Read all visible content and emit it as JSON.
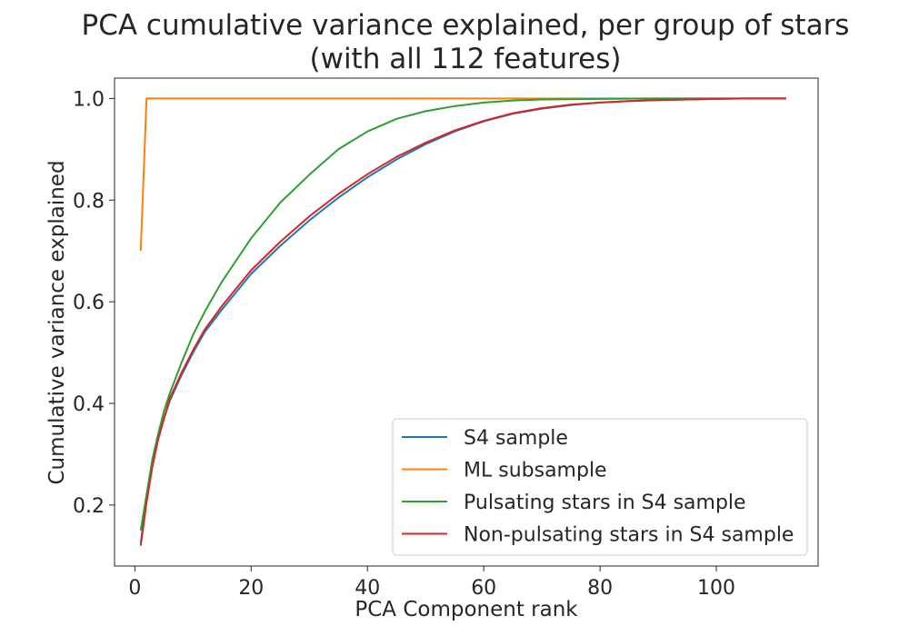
{
  "chart_data": {
    "type": "line",
    "title": [
      "PCA cumulative variance explained, per group of stars",
      "(with all 112 features)"
    ],
    "xlabel": "PCA Component rank",
    "ylabel": "Cumulative variance explained",
    "xlim": [
      -3.5,
      117.5
    ],
    "ylim": [
      0.08,
      1.04
    ],
    "xticks": [
      0,
      20,
      40,
      60,
      80,
      100
    ],
    "yticks": [
      0.2,
      0.4,
      0.6,
      0.8,
      1.0
    ],
    "xtick_labels": [
      "0",
      "20",
      "40",
      "60",
      "80",
      "100"
    ],
    "ytick_labels": [
      "0.2",
      "0.4",
      "0.6",
      "0.8",
      "1.0"
    ],
    "grid": false,
    "legend_position": "lower right",
    "series": [
      {
        "name": "S4 sample",
        "color": "#1f77b4",
        "x": [
          1,
          2,
          3,
          4,
          5,
          6,
          8,
          10,
          12,
          15,
          20,
          25,
          30,
          35,
          40,
          45,
          50,
          55,
          60,
          65,
          70,
          75,
          80,
          85,
          90,
          95,
          100,
          105,
          112
        ],
        "y": [
          0.125,
          0.21,
          0.28,
          0.33,
          0.37,
          0.405,
          0.455,
          0.5,
          0.54,
          0.585,
          0.655,
          0.71,
          0.76,
          0.805,
          0.845,
          0.88,
          0.91,
          0.935,
          0.955,
          0.97,
          0.98,
          0.987,
          0.992,
          0.995,
          0.997,
          0.998,
          0.999,
          1.0,
          1.0
        ]
      },
      {
        "name": "ML subsample",
        "color": "#ff7f0e",
        "x": [
          1,
          2,
          3,
          10,
          50,
          112
        ],
        "y": [
          0.7,
          1.0,
          1.0,
          1.0,
          1.0,
          1.0
        ]
      },
      {
        "name": "Pulsating stars in S4 sample",
        "color": "#2ca02c",
        "x": [
          1,
          2,
          3,
          4,
          5,
          6,
          8,
          10,
          12,
          15,
          20,
          25,
          30,
          35,
          40,
          45,
          50,
          55,
          60,
          65,
          70,
          80,
          90,
          100,
          112
        ],
        "y": [
          0.15,
          0.22,
          0.29,
          0.34,
          0.385,
          0.42,
          0.48,
          0.535,
          0.58,
          0.64,
          0.725,
          0.795,
          0.85,
          0.9,
          0.935,
          0.96,
          0.975,
          0.985,
          0.992,
          0.996,
          0.998,
          0.999,
          1.0,
          1.0,
          1.0
        ]
      },
      {
        "name": "Non-pulsating stars in S4 sample",
        "color": "#d62728",
        "x": [
          1,
          2,
          3,
          4,
          5,
          6,
          8,
          10,
          12,
          15,
          20,
          25,
          30,
          35,
          40,
          45,
          50,
          55,
          60,
          65,
          70,
          75,
          80,
          85,
          90,
          95,
          100,
          105,
          112
        ],
        "y": [
          0.12,
          0.205,
          0.275,
          0.33,
          0.37,
          0.41,
          0.46,
          0.505,
          0.545,
          0.592,
          0.662,
          0.718,
          0.768,
          0.812,
          0.851,
          0.885,
          0.913,
          0.937,
          0.956,
          0.971,
          0.981,
          0.988,
          0.992,
          0.995,
          0.997,
          0.998,
          0.999,
          1.0,
          1.0
        ]
      }
    ]
  }
}
